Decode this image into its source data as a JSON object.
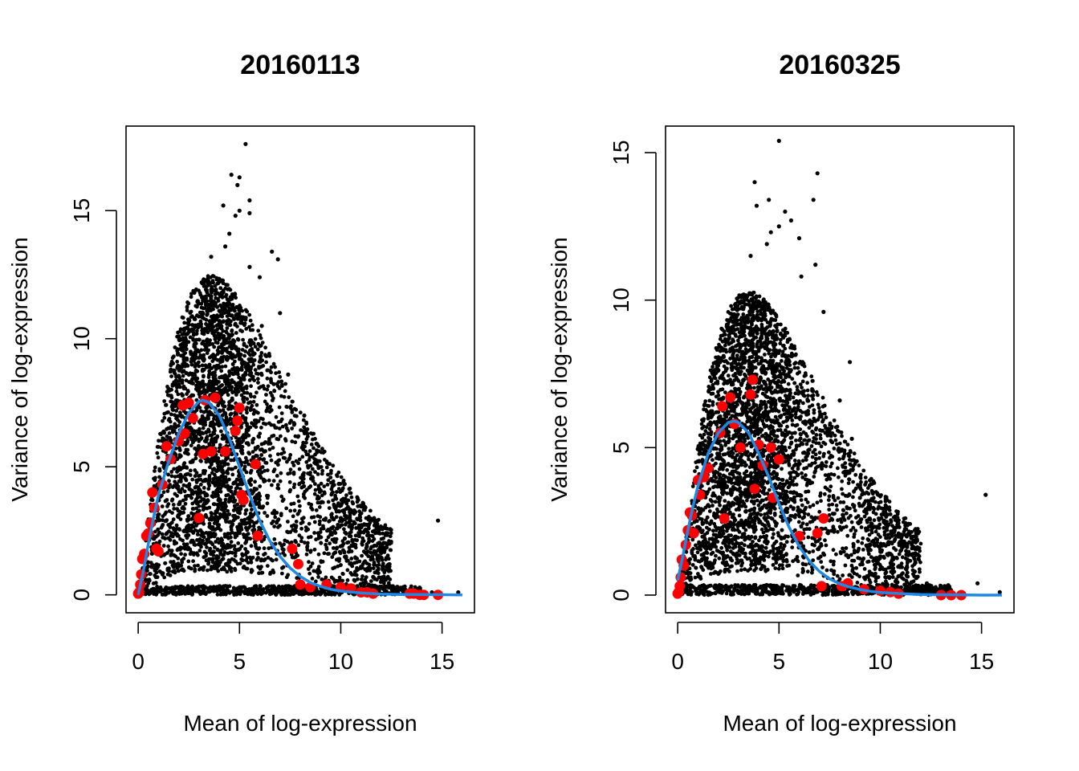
{
  "chart_data": [
    {
      "type": "scatter",
      "title": "20160113",
      "xlabel": "Mean of log-expression",
      "ylabel": "Variance of log-expression",
      "xlim": [
        -0.6,
        16.6
      ],
      "ylim": [
        -0.7,
        18.3
      ],
      "xticks": [
        0,
        5,
        10,
        15
      ],
      "yticks": [
        0,
        5,
        10,
        15
      ],
      "grid": false,
      "genes_color": "#000000",
      "spikes_color": "#ff0000",
      "trend_color": "#1e88e5",
      "cloud": {
        "seed": 11,
        "count": 3800,
        "peak_mean": 3.6,
        "peak_var": 12.5,
        "tail_end": 12.5
      },
      "outliers": [
        [
          5.3,
          17.6
        ],
        [
          4.6,
          16.4
        ],
        [
          5.0,
          16.3
        ],
        [
          4.9,
          16.0
        ],
        [
          5.5,
          15.4
        ],
        [
          4.2,
          15.2
        ],
        [
          5.0,
          15.0
        ],
        [
          4.8,
          14.8
        ],
        [
          5.5,
          14.9
        ],
        [
          4.5,
          14.1
        ],
        [
          3.6,
          13.2
        ],
        [
          4.3,
          13.6
        ],
        [
          6.6,
          13.4
        ],
        [
          6.9,
          13.1
        ],
        [
          5.5,
          12.8
        ],
        [
          6.0,
          12.4
        ],
        [
          7.0,
          11.0
        ],
        [
          6.1,
          10.5
        ],
        [
          7.4,
          8.6
        ],
        [
          8.2,
          7.0
        ],
        [
          8.8,
          5.9
        ],
        [
          8.6,
          4.6
        ],
        [
          9.0,
          3.6
        ],
        [
          10.0,
          3.0
        ],
        [
          10.2,
          2.2
        ],
        [
          11.0,
          1.1
        ],
        [
          11.6,
          0.7
        ],
        [
          12.2,
          0.3
        ],
        [
          13.0,
          0.2
        ],
        [
          14.5,
          0.1
        ],
        [
          14.8,
          2.9
        ],
        [
          15.8,
          0.1
        ]
      ],
      "spikes": {
        "x": [
          0.0,
          0.05,
          0.1,
          0.15,
          0.2,
          0.3,
          0.4,
          0.5,
          0.6,
          0.7,
          0.8,
          0.9,
          1.0,
          1.2,
          1.4,
          1.6,
          2.0,
          2.2,
          2.3,
          2.5,
          2.7,
          3.0,
          3.2,
          3.3,
          3.6,
          3.8,
          4.3,
          4.8,
          4.9,
          5.0,
          5.1,
          5.2,
          5.8,
          5.9,
          7.6,
          7.9,
          8.0,
          8.5,
          9.3,
          10.0,
          10.5,
          11.0,
          11.3,
          11.6,
          13.4,
          13.6,
          13.9,
          14.1,
          14.8
        ],
        "y": [
          0.05,
          0.1,
          0.4,
          0.8,
          1.4,
          1.6,
          2.3,
          2.4,
          2.8,
          4.0,
          3.4,
          1.8,
          1.7,
          4.3,
          5.8,
          5.3,
          6.0,
          7.4,
          6.3,
          7.5,
          6.9,
          3.0,
          5.5,
          7.6,
          5.6,
          7.7,
          5.6,
          6.4,
          6.8,
          7.3,
          3.9,
          3.7,
          5.1,
          2.3,
          1.8,
          1.2,
          0.4,
          0.3,
          0.4,
          0.3,
          0.25,
          0.1,
          0.1,
          0.05,
          0.05,
          0.05,
          0.0,
          0.0,
          0.0
        ]
      },
      "trend": {
        "x": [
          0,
          0.25,
          0.5,
          0.75,
          1.0,
          1.5,
          2.0,
          2.5,
          3.0,
          3.2,
          3.5,
          4.0,
          4.5,
          5.0,
          5.5,
          6.0,
          6.5,
          7.0,
          7.5,
          8.0,
          8.5,
          9.0,
          9.5,
          10.0,
          11.0,
          12.0,
          13.0,
          14.0,
          15.0,
          16.0
        ],
        "y": [
          0.0,
          0.9,
          2.0,
          3.0,
          3.9,
          5.2,
          6.3,
          7.1,
          7.55,
          7.6,
          7.5,
          7.0,
          6.1,
          5.0,
          3.9,
          2.9,
          2.1,
          1.5,
          1.05,
          0.72,
          0.48,
          0.33,
          0.22,
          0.15,
          0.07,
          0.03,
          0.015,
          0.01,
          0.005,
          0.0
        ]
      }
    },
    {
      "type": "scatter",
      "title": "20160325",
      "xlabel": "Mean of log-expression",
      "ylabel": "Variance of log-expression",
      "xlim": [
        -0.6,
        16.6
      ],
      "ylim": [
        -0.6,
        15.9
      ],
      "xticks": [
        0,
        5,
        10,
        15
      ],
      "yticks": [
        0,
        5,
        10,
        15
      ],
      "grid": false,
      "genes_color": "#000000",
      "spikes_color": "#ff0000",
      "trend_color": "#1e88e5",
      "cloud": {
        "seed": 29,
        "count": 3800,
        "peak_mean": 3.5,
        "peak_var": 10.3,
        "tail_end": 12.0
      },
      "outliers": [
        [
          5.0,
          15.4
        ],
        [
          6.9,
          14.3
        ],
        [
          3.8,
          14.0
        ],
        [
          4.5,
          13.4
        ],
        [
          6.7,
          13.4
        ],
        [
          3.9,
          13.2
        ],
        [
          5.3,
          13.0
        ],
        [
          5.6,
          12.7
        ],
        [
          5.0,
          12.5
        ],
        [
          4.6,
          12.3
        ],
        [
          6.0,
          12.1
        ],
        [
          4.4,
          11.9
        ],
        [
          6.8,
          11.2
        ],
        [
          3.6,
          11.5
        ],
        [
          6.1,
          10.8
        ],
        [
          7.2,
          9.6
        ],
        [
          8.5,
          7.9
        ],
        [
          8.0,
          6.6
        ],
        [
          8.6,
          5.3
        ],
        [
          8.2,
          4.7
        ],
        [
          9.0,
          3.3
        ],
        [
          10.3,
          2.4
        ],
        [
          11.0,
          1.5
        ],
        [
          11.7,
          0.8
        ],
        [
          12.3,
          0.4
        ],
        [
          13.0,
          0.2
        ],
        [
          14.0,
          0.1
        ],
        [
          15.2,
          3.4
        ],
        [
          14.8,
          0.4
        ],
        [
          15.9,
          0.1
        ]
      ],
      "spikes": {
        "x": [
          0.0,
          0.05,
          0.1,
          0.15,
          0.2,
          0.3,
          0.4,
          0.5,
          0.6,
          0.7,
          0.8,
          1.0,
          1.1,
          1.3,
          1.5,
          2.1,
          2.2,
          2.3,
          2.6,
          2.8,
          3.1,
          3.6,
          3.7,
          3.8,
          4.0,
          4.2,
          4.6,
          4.7,
          5.0,
          6.0,
          6.9,
          7.1,
          7.2,
          8.1,
          8.4,
          9.2,
          10.0,
          10.5,
          10.9,
          13.0,
          13.5,
          14.0
        ],
        "y": [
          0.05,
          0.1,
          0.3,
          0.6,
          1.2,
          1.0,
          1.7,
          2.2,
          2.8,
          2.7,
          2.1,
          3.9,
          3.4,
          4.0,
          4.3,
          5.5,
          6.4,
          2.6,
          6.7,
          5.8,
          5.0,
          6.8,
          7.3,
          3.6,
          5.1,
          4.4,
          5.0,
          3.3,
          4.6,
          2.0,
          2.1,
          0.3,
          2.6,
          0.3,
          0.4,
          0.2,
          0.15,
          0.1,
          0.05,
          0.0,
          0.0,
          0.0
        ]
      },
      "trend": {
        "x": [
          0,
          0.25,
          0.5,
          0.75,
          1.0,
          1.5,
          2.0,
          2.5,
          2.8,
          3.0,
          3.5,
          4.0,
          4.5,
          5.0,
          5.5,
          6.0,
          6.5,
          7.0,
          7.5,
          8.0,
          8.5,
          9.0,
          9.5,
          10.0,
          11.0,
          12.0,
          13.0,
          14.0,
          15.0,
          16.0
        ],
        "y": [
          0.5,
          1.3,
          2.2,
          3.0,
          3.7,
          4.8,
          5.5,
          5.85,
          5.9,
          5.85,
          5.5,
          4.8,
          4.0,
          3.1,
          2.3,
          1.65,
          1.15,
          0.8,
          0.55,
          0.38,
          0.27,
          0.19,
          0.13,
          0.09,
          0.05,
          0.02,
          0.01,
          0.005,
          0.0,
          0.0
        ]
      }
    }
  ]
}
